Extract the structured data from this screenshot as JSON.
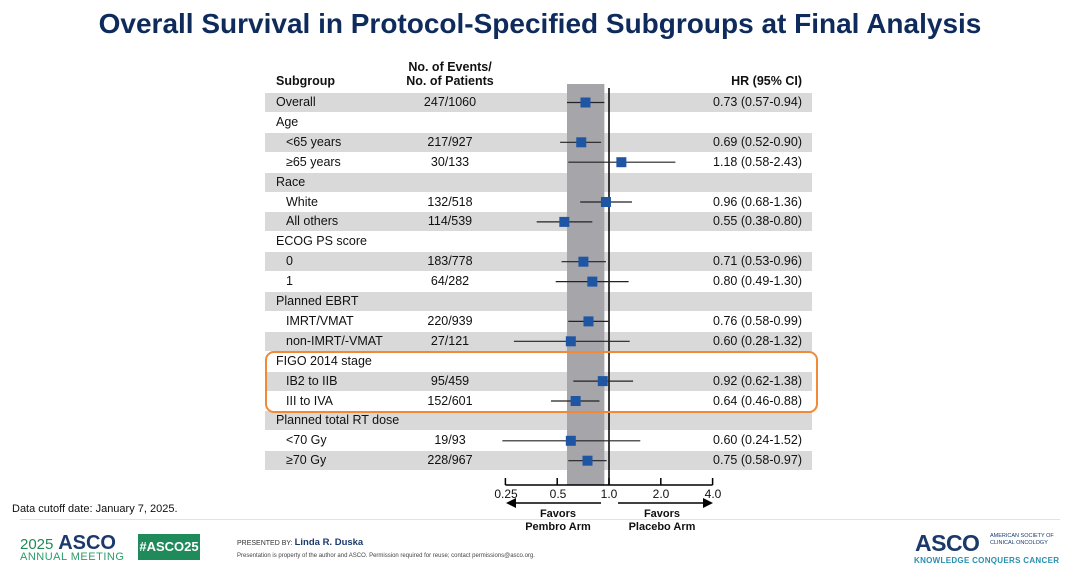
{
  "title": "Overall Survival in Protocol-Specified Subgroups at Final Analysis",
  "headers": {
    "subgroup": "Subgroup",
    "events_line1": "No. of  Events/",
    "events_line2": "No. of Patients",
    "hr": "HR (95% CI)"
  },
  "chart_data": {
    "type": "forest",
    "xscale": "log",
    "xlim": [
      0.25,
      4.0
    ],
    "xticks": [
      "0.25",
      "0.5",
      "1.0",
      "2.0",
      "4.0"
    ],
    "reference_line": 1.0,
    "overall_ci_band": [
      0.57,
      0.94
    ],
    "favors_left_l1": "Favors",
    "favors_left_l2": "Pembro Arm",
    "favors_right_l1": "Favors",
    "favors_right_l2": "Placebo Arm",
    "marker_color": "#1f56a3",
    "rows": [
      {
        "label": "Overall",
        "indent": false,
        "events": "247/1060",
        "hr": 0.73,
        "lo": 0.57,
        "hi": 0.94,
        "text": "0.73 (0.57-0.94)"
      },
      {
        "label": "Age",
        "indent": false,
        "header": true
      },
      {
        "label": "<65 years",
        "indent": true,
        "events": "217/927",
        "hr": 0.69,
        "lo": 0.52,
        "hi": 0.9,
        "text": "0.69 (0.52-0.90)"
      },
      {
        "label": "≥65 years",
        "indent": true,
        "events": "30/133",
        "hr": 1.18,
        "lo": 0.58,
        "hi": 2.43,
        "text": "1.18 (0.58-2.43)"
      },
      {
        "label": "Race",
        "indent": false,
        "header": true
      },
      {
        "label": "White",
        "indent": true,
        "events": "132/518",
        "hr": 0.96,
        "lo": 0.68,
        "hi": 1.36,
        "text": "0.96 (0.68-1.36)"
      },
      {
        "label": "All others",
        "indent": true,
        "events": "114/539",
        "hr": 0.55,
        "lo": 0.38,
        "hi": 0.8,
        "text": "0.55 (0.38-0.80)"
      },
      {
        "label": "ECOG PS score",
        "indent": false,
        "header": true
      },
      {
        "label": "0",
        "indent": true,
        "events": "183/778",
        "hr": 0.71,
        "lo": 0.53,
        "hi": 0.96,
        "text": "0.71 (0.53-0.96)"
      },
      {
        "label": "1",
        "indent": true,
        "events": "64/282",
        "hr": 0.8,
        "lo": 0.49,
        "hi": 1.3,
        "text": "0.80 (0.49-1.30)"
      },
      {
        "label": "Planned EBRT",
        "indent": false,
        "header": true
      },
      {
        "label": "IMRT/VMAT",
        "indent": true,
        "events": "220/939",
        "hr": 0.76,
        "lo": 0.58,
        "hi": 0.99,
        "text": "0.76 (0.58-0.99)"
      },
      {
        "label": "non-IMRT/-VMAT",
        "indent": true,
        "events": "27/121",
        "hr": 0.6,
        "lo": 0.28,
        "hi": 1.32,
        "text": "0.60 (0.28-1.32)"
      },
      {
        "label": "FIGO 2014 stage",
        "indent": false,
        "header": true
      },
      {
        "label": "IB2 to IIB",
        "indent": true,
        "events": "95/459",
        "hr": 0.92,
        "lo": 0.62,
        "hi": 1.38,
        "text": "0.92 (0.62-1.38)"
      },
      {
        "label": "III to IVA",
        "indent": true,
        "events": "152/601",
        "hr": 0.64,
        "lo": 0.46,
        "hi": 0.88,
        "text": "0.64 (0.46-0.88)"
      },
      {
        "label": "Planned total RT dose",
        "indent": false,
        "header": true
      },
      {
        "label": "<70 Gy",
        "indent": true,
        "events": "19/93",
        "hr": 0.6,
        "lo": 0.24,
        "hi": 1.52,
        "text": "0.60 (0.24-1.52)"
      },
      {
        "label": "≥70 Gy",
        "indent": true,
        "events": "228/967",
        "hr": 0.75,
        "lo": 0.58,
        "hi": 0.97,
        "text": "0.75 (0.58-0.97)"
      }
    ],
    "highlighted_group": "FIGO 2014 stage",
    "highlight_color": "#f08a36"
  },
  "footer": {
    "cutoff": "Data cutoff date: January 7, 2025.",
    "meeting_year": "2025",
    "meeting_name": "ASCO",
    "meeting_sub": "ANNUAL MEETING",
    "hashtag": "#ASCO25",
    "presented_by_label": "PRESENTED BY:",
    "presenter": "Linda R. Duska",
    "property_note": "Presentation is property of the author and ASCO. Permission required for reuse; contact permissions@asco.org.",
    "asco_logo": "ASCO",
    "asco_full": "AMERICAN SOCIETY OF CLINICAL ONCOLOGY",
    "asco_tagline": "KNOWLEDGE CONQUERS CANCER"
  }
}
